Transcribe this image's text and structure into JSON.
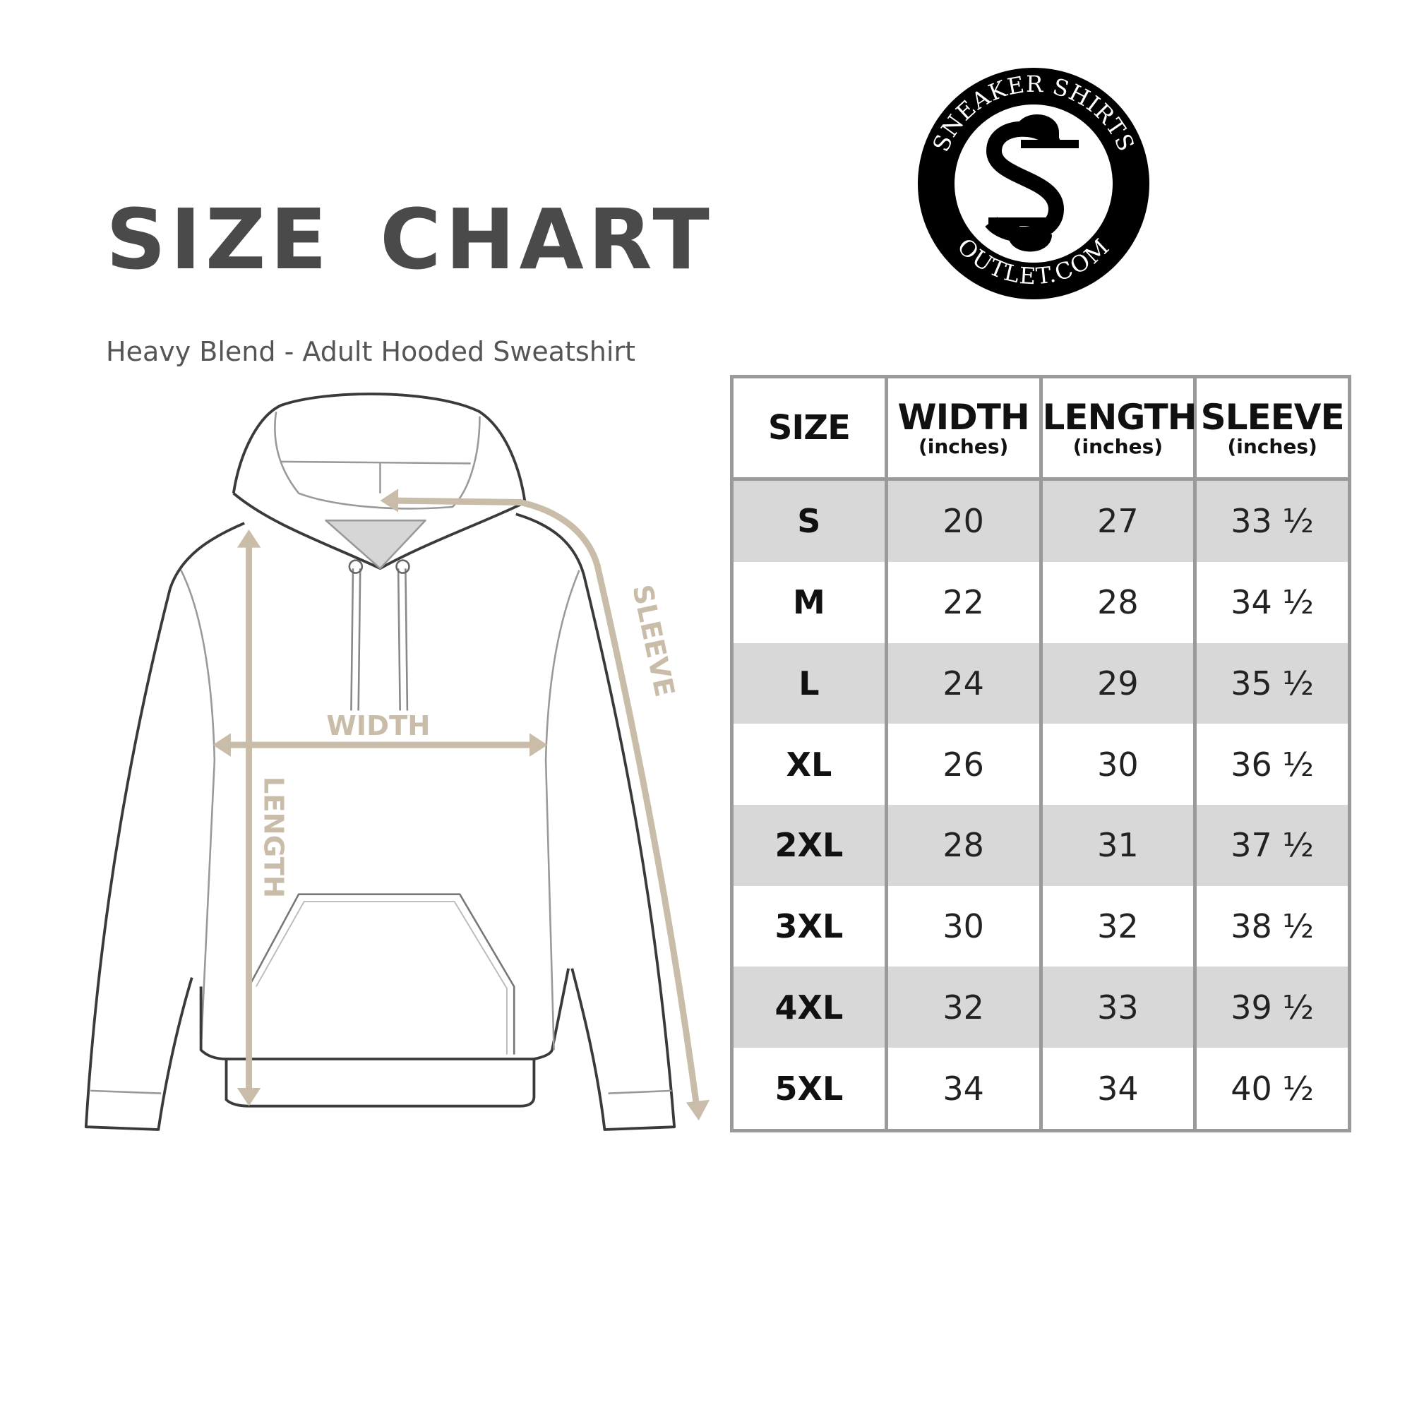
{
  "header": {
    "title": "SIZE CHART",
    "subtitle": "Heavy Blend - Adult Hooded Sweatshirt"
  },
  "logo": {
    "top_text": "SNEAKER SHIRTS",
    "bottom_text": "OUTLET.COM",
    "monogram": "SS"
  },
  "diagram": {
    "labels": {
      "width": "WIDTH",
      "length": "LENGTH",
      "sleeve": "SLEEVE"
    },
    "arrow_color": "#c9bca9"
  },
  "table": {
    "columns": [
      {
        "title": "SIZE",
        "unit": ""
      },
      {
        "title": "WIDTH",
        "unit": "(inches)"
      },
      {
        "title": "LENGTH",
        "unit": "(inches)"
      },
      {
        "title": "SLEEVE",
        "unit": "(inches)"
      }
    ],
    "rows": [
      [
        "S",
        "20",
        "27",
        "33 ½"
      ],
      [
        "M",
        "22",
        "28",
        "34 ½"
      ],
      [
        "L",
        "24",
        "29",
        "35 ½"
      ],
      [
        "XL",
        "26",
        "30",
        "36 ½"
      ],
      [
        "2XL",
        "28",
        "31",
        "37 ½"
      ],
      [
        "3XL",
        "30",
        "32",
        "38 ½"
      ],
      [
        "4XL",
        "32",
        "33",
        "39 ½"
      ],
      [
        "5XL",
        "34",
        "34",
        "40 ½"
      ]
    ],
    "shade_color": "#d8d8d8",
    "border_color": "#9a9a9a"
  }
}
